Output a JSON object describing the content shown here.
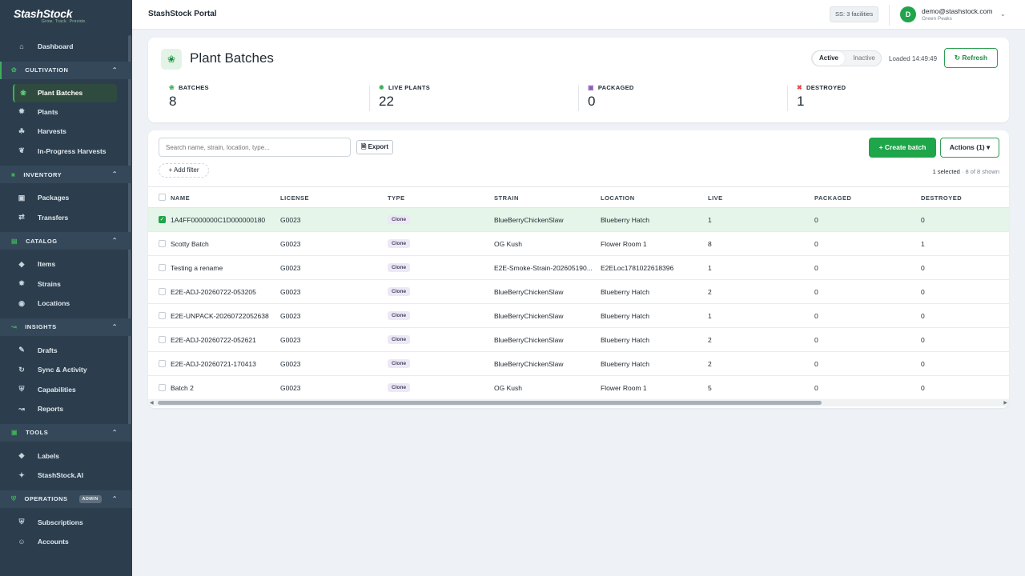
{
  "brand": {
    "name": "StashStock",
    "tagline": "Grow. Track. Provide."
  },
  "sidebar": {
    "dashboard": "Dashboard",
    "sections": [
      {
        "title": "CULTIVATION",
        "items": [
          "Plant Batches",
          "Plants",
          "Harvests",
          "In-Progress Harvests"
        ]
      },
      {
        "title": "INVENTORY",
        "items": [
          "Packages",
          "Transfers"
        ]
      },
      {
        "title": "CATALOG",
        "items": [
          "Items",
          "Strains",
          "Locations"
        ]
      },
      {
        "title": "INSIGHTS",
        "items": [
          "Drafts",
          "Sync & Activity",
          "Capabilities",
          "Reports"
        ]
      },
      {
        "title": "TOOLS",
        "items": [
          "Labels",
          "StashStock.AI"
        ]
      },
      {
        "title": "OPERATIONS",
        "badge": "ADMIN",
        "items": [
          "Subscriptions",
          "Accounts"
        ]
      }
    ]
  },
  "topbar": {
    "title": "StashStock Portal",
    "facilities": "SS: 3 facilities",
    "avatar_letter": "D",
    "email": "demo@stashstock.com",
    "org": "Green Peaks"
  },
  "header": {
    "title": "Plant Batches",
    "toggle_active": "Active",
    "toggle_inactive": "Inactive",
    "loaded": "Loaded 14:49:49",
    "refresh": "Refresh",
    "stats": [
      {
        "label": "BATCHES",
        "value": "8"
      },
      {
        "label": "LIVE PLANTS",
        "value": "22"
      },
      {
        "label": "PACKAGED",
        "value": "0"
      },
      {
        "label": "DESTROYED",
        "value": "1"
      }
    ]
  },
  "toolbar": {
    "search_placeholder": "Search name, strain, location, type...",
    "export": "Export",
    "add_filter": "Add filter",
    "create": "Create batch",
    "actions": "Actions (1)",
    "selected": "1 selected",
    "shown": " · 8 of 8 shown"
  },
  "table": {
    "columns": [
      "NAME",
      "LICENSE",
      "TYPE",
      "STRAIN",
      "LOCATION",
      "LIVE",
      "PACKAGED",
      "DESTROYED"
    ],
    "rows": [
      {
        "name": "1A4FF0000000C1D000000180",
        "license": "G0023",
        "type": "Clone",
        "strain": "BlueBerryChickenSlaw",
        "location": "Blueberry Hatch",
        "live": "1",
        "packaged": "0",
        "destroyed": "0"
      },
      {
        "name": "Scotty Batch",
        "license": "G0023",
        "type": "Clone",
        "strain": "OG Kush",
        "location": "Flower Room 1",
        "live": "8",
        "packaged": "0",
        "destroyed": "1"
      },
      {
        "name": "Testing a rename",
        "license": "G0023",
        "type": "Clone",
        "strain": "E2E-Smoke-Strain-202605190...",
        "location": "E2ELoc1781022618396",
        "live": "1",
        "packaged": "0",
        "destroyed": "0"
      },
      {
        "name": "E2E-ADJ-20260722-053205",
        "license": "G0023",
        "type": "Clone",
        "strain": "BlueBerryChickenSlaw",
        "location": "Blueberry Hatch",
        "live": "2",
        "packaged": "0",
        "destroyed": "0"
      },
      {
        "name": "E2E-UNPACK-20260722052638",
        "license": "G0023",
        "type": "Clone",
        "strain": "BlueBerryChickenSlaw",
        "location": "Blueberry Hatch",
        "live": "1",
        "packaged": "0",
        "destroyed": "0"
      },
      {
        "name": "E2E-ADJ-20260722-052621",
        "license": "G0023",
        "type": "Clone",
        "strain": "BlueBerryChickenSlaw",
        "location": "Blueberry Hatch",
        "live": "2",
        "packaged": "0",
        "destroyed": "0"
      },
      {
        "name": "E2E-ADJ-20260721-170413",
        "license": "G0023",
        "type": "Clone",
        "strain": "BlueBerryChickenSlaw",
        "location": "Blueberry Hatch",
        "live": "2",
        "packaged": "0",
        "destroyed": "0"
      },
      {
        "name": "Batch 2",
        "license": "G0023",
        "type": "Clone",
        "strain": "OG Kush",
        "location": "Flower Room 1",
        "live": "5",
        "packaged": "0",
        "destroyed": "0"
      }
    ]
  },
  "colors": {
    "accent": "#1fa54a",
    "sidebar_bg": "#2c3e4d",
    "selected_row": "#e5f5e9"
  }
}
